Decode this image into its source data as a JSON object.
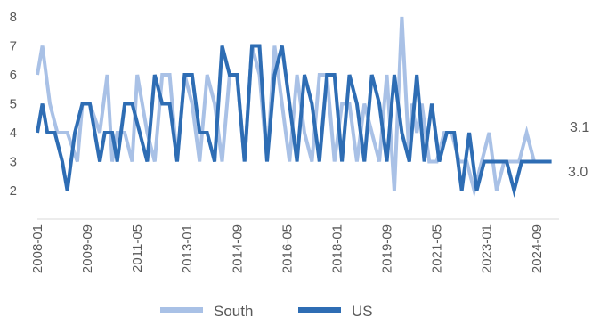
{
  "chart_data": {
    "type": "line",
    "title": "",
    "xlabel": "",
    "ylabel": "",
    "ylim": [
      2,
      8
    ],
    "yticks": [
      2,
      3,
      4,
      5,
      6,
      7,
      8
    ],
    "xlim": [
      "2008-01",
      "2025-06"
    ],
    "xticks": [
      "2008-01",
      "2009-09",
      "2011-05",
      "2013-01",
      "2014-09",
      "2016-05",
      "2018-01",
      "2019-09",
      "2021-05",
      "2023-01",
      "2024-09"
    ],
    "grid": false,
    "legend": "bottom",
    "end_labels": [
      "3.1",
      "3.0"
    ],
    "series": [
      {
        "name": "South",
        "color": "#a9c1e6",
        "x": [
          "2008-01",
          "2008-03",
          "2008-06",
          "2008-09",
          "2009-01",
          "2009-05",
          "2009-07",
          "2009-10",
          "2010-02",
          "2010-05",
          "2010-07",
          "2010-09",
          "2010-12",
          "2011-03",
          "2011-05",
          "2011-09",
          "2011-12",
          "2012-03",
          "2012-06",
          "2012-09",
          "2012-12",
          "2013-03",
          "2013-06",
          "2013-09",
          "2013-12",
          "2014-03",
          "2014-06",
          "2014-09",
          "2014-12",
          "2015-03",
          "2015-06",
          "2015-09",
          "2015-12",
          "2016-03",
          "2016-06",
          "2016-09",
          "2016-12",
          "2017-03",
          "2017-06",
          "2017-09",
          "2017-12",
          "2018-03",
          "2018-06",
          "2018-09",
          "2018-12",
          "2019-03",
          "2019-06",
          "2019-09",
          "2019-12",
          "2020-03",
          "2020-06",
          "2020-07",
          "2020-09",
          "2020-11",
          "2021-02",
          "2021-05",
          "2021-08",
          "2021-11",
          "2022-02",
          "2022-05",
          "2022-08",
          "2022-11",
          "2023-02",
          "2023-05",
          "2023-08",
          "2023-11",
          "2024-02",
          "2024-05",
          "2024-08",
          "2024-11",
          "2025-02"
        ],
        "values": [
          6,
          7,
          5,
          4,
          4,
          3,
          5,
          5,
          4,
          6,
          3,
          4,
          4,
          3,
          6,
          4,
          3,
          6,
          6,
          3,
          6,
          5,
          3,
          6,
          5,
          3,
          6,
          6,
          3,
          7,
          6,
          3,
          7,
          5,
          3,
          6,
          4,
          3,
          6,
          6,
          3,
          5,
          5,
          3,
          5,
          4,
          3,
          6,
          2,
          8,
          3,
          5,
          4,
          5,
          3,
          3,
          4,
          4,
          3,
          3,
          2,
          3,
          4,
          2,
          3,
          3,
          3,
          4,
          3,
          3,
          3
        ]
      },
      {
        "name": "US",
        "color": "#2e6db4",
        "x": [
          "2008-01",
          "2008-03",
          "2008-05",
          "2008-08",
          "2008-11",
          "2009-01",
          "2009-04",
          "2009-07",
          "2009-10",
          "2010-02",
          "2010-04",
          "2010-07",
          "2010-09",
          "2010-12",
          "2011-03",
          "2011-06",
          "2011-09",
          "2011-12",
          "2012-03",
          "2012-06",
          "2012-09",
          "2012-12",
          "2013-03",
          "2013-06",
          "2013-09",
          "2013-12",
          "2014-03",
          "2014-06",
          "2014-09",
          "2014-12",
          "2015-03",
          "2015-06",
          "2015-09",
          "2015-12",
          "2016-03",
          "2016-06",
          "2016-09",
          "2016-12",
          "2017-03",
          "2017-06",
          "2017-09",
          "2017-12",
          "2018-03",
          "2018-06",
          "2018-09",
          "2018-12",
          "2019-03",
          "2019-06",
          "2019-09",
          "2019-12",
          "2020-03",
          "2020-06",
          "2020-09",
          "2020-12",
          "2021-03",
          "2021-06",
          "2021-09",
          "2021-12",
          "2022-03",
          "2022-06",
          "2022-09",
          "2022-12",
          "2023-03",
          "2023-06",
          "2023-09",
          "2023-12",
          "2024-03",
          "2024-06",
          "2024-09",
          "2024-12",
          "2025-03"
        ],
        "values": [
          4,
          5,
          4,
          4,
          3,
          2,
          4,
          5,
          5,
          3,
          4,
          4,
          3,
          5,
          5,
          4,
          3,
          6,
          5,
          5,
          3,
          6,
          6,
          4,
          4,
          3,
          7,
          6,
          6,
          3,
          7,
          7,
          3,
          6,
          7,
          5,
          3,
          6,
          5,
          3,
          6,
          6,
          3,
          6,
          5,
          3,
          6,
          5,
          3,
          6,
          4,
          3,
          6,
          3,
          5,
          3,
          4,
          4,
          2,
          4,
          2,
          3,
          3,
          3,
          3,
          2,
          3,
          3,
          3,
          3,
          3
        ]
      }
    ]
  }
}
